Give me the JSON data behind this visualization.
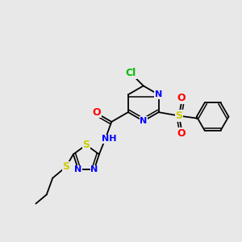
{
  "background_color": "#e8e8e8",
  "bond_color": "#000000",
  "figsize": [
    3.0,
    3.0
  ],
  "dpi": 100,
  "atom_colors": {
    "Cl": "#00bb00",
    "N": "#0000ff",
    "O": "#ff0000",
    "S": "#cccc00",
    "H": "#000000"
  },
  "bg": "#e8e8e8"
}
